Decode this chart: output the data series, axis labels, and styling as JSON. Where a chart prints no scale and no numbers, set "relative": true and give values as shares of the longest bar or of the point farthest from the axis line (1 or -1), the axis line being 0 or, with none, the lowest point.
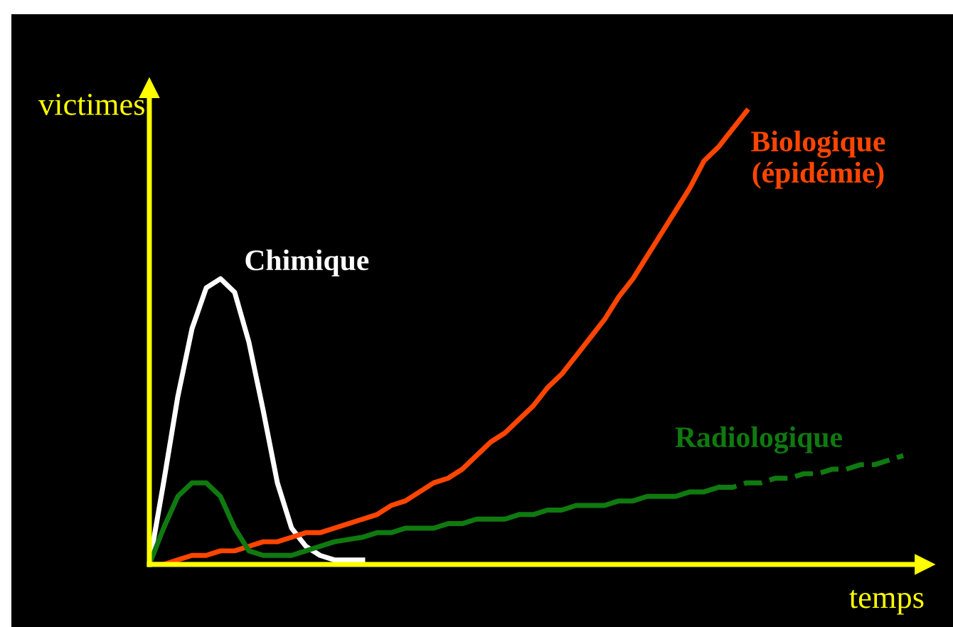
{
  "chart_data": {
    "type": "line",
    "relative": true,
    "xlabel": "temps",
    "ylabel": "victimes",
    "legend": false,
    "marker": "none",
    "categories": [
      null,
      null,
      null,
      null,
      null,
      null,
      null,
      null,
      null,
      null,
      null,
      null,
      null,
      null,
      null,
      null,
      null,
      null,
      null,
      null,
      null,
      null,
      null,
      null,
      null,
      null,
      null,
      null,
      null,
      null,
      null,
      null,
      null,
      null,
      null,
      null,
      null,
      null,
      null,
      null,
      null,
      null,
      null,
      null,
      null,
      null,
      null,
      null,
      null,
      null,
      null,
      null,
      null,
      null
    ],
    "series": [
      {
        "name": "Chimique",
        "color": "#ffffff",
        "line_style": "solid",
        "values": [
          0,
          0.18,
          0.37,
          0.52,
          0.61,
          0.63,
          0.6,
          0.49,
          0.34,
          0.18,
          0.08,
          0.04,
          0.02,
          0.01,
          0.01,
          0.01,
          null,
          null,
          null,
          null,
          null,
          null,
          null,
          null,
          null,
          null,
          null,
          null,
          null,
          null,
          null,
          null,
          null,
          null,
          null,
          null,
          null,
          null,
          null,
          null,
          null,
          null,
          null,
          null,
          null,
          null,
          null,
          null,
          null,
          null,
          null,
          null,
          null,
          null
        ]
      },
      {
        "name": "Biologique\n(épidémie)",
        "color": "#ff4500",
        "line_style": "solid",
        "values": [
          0,
          0.0,
          0.01,
          0.02,
          0.02,
          0.03,
          0.03,
          0.04,
          0.05,
          0.05,
          0.06,
          0.07,
          0.07,
          0.08,
          0.09,
          0.1,
          0.11,
          0.13,
          0.14,
          0.16,
          0.18,
          0.19,
          0.21,
          0.24,
          0.27,
          0.29,
          0.32,
          0.35,
          0.39,
          0.42,
          0.46,
          0.5,
          0.54,
          0.59,
          0.63,
          0.68,
          0.73,
          0.78,
          0.83,
          0.89,
          0.92,
          0.96,
          1.0,
          null,
          null,
          null,
          null,
          null,
          null,
          null,
          null,
          null,
          null,
          null
        ]
      },
      {
        "name": "Radiologique",
        "color": "#0f7a0f",
        "line_style": "solid",
        "values": [
          0,
          0.08,
          0.15,
          0.18,
          0.18,
          0.15,
          0.08,
          0.03,
          0.02,
          0.02,
          0.02,
          0.03,
          0.04,
          0.05,
          0.055,
          0.06,
          0.07,
          0.07,
          0.08,
          0.08,
          0.08,
          0.09,
          0.09,
          0.1,
          0.1,
          0.1,
          0.11,
          0.11,
          0.12,
          0.12,
          0.13,
          0.13,
          0.13,
          0.14,
          0.14,
          0.15,
          0.15,
          0.15,
          0.16,
          0.16,
          0.17,
          null,
          null,
          null,
          null,
          null,
          null,
          null,
          null,
          null,
          null,
          null,
          null,
          null
        ]
      },
      {
        "color": "#0f7a0f",
        "line_style": "dashed",
        "values": [
          null,
          null,
          null,
          null,
          null,
          null,
          null,
          null,
          null,
          null,
          null,
          null,
          null,
          null,
          null,
          null,
          null,
          null,
          null,
          null,
          null,
          null,
          null,
          null,
          null,
          null,
          null,
          null,
          null,
          null,
          null,
          null,
          null,
          null,
          null,
          null,
          null,
          null,
          null,
          null,
          0.17,
          0.17,
          0.18,
          0.18,
          0.19,
          0.19,
          0.2,
          0.2,
          0.21,
          0.21,
          0.22,
          0.22,
          0.23,
          0.24
        ]
      }
    ]
  }
}
